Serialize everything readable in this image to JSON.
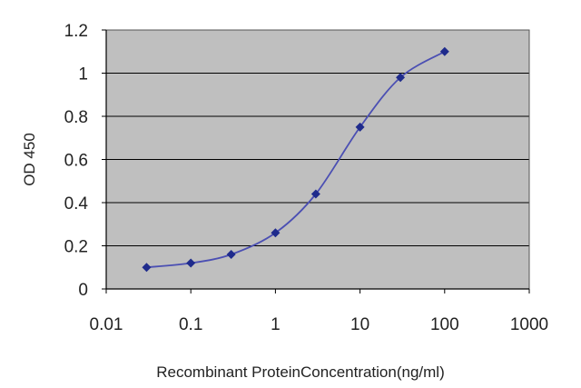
{
  "chart_data": {
    "type": "line",
    "title": "",
    "xlabel": "Recombinant ProteinConcentration(ng/ml)",
    "ylabel": "OD 450",
    "x_scale": "log",
    "xlim": [
      0.01,
      1000
    ],
    "ylim": [
      0,
      1.2
    ],
    "x_ticks": [
      0.01,
      0.1,
      1,
      10,
      100,
      1000
    ],
    "x_tick_labels": [
      "0.01",
      "0.1",
      "1",
      "10",
      "100",
      "1000"
    ],
    "y_ticks": [
      0,
      0.2,
      0.4,
      0.6,
      0.8,
      1,
      1.2
    ],
    "y_tick_labels": [
      "0",
      "0.2",
      "0.4",
      "0.6",
      "0.8",
      "1",
      "1.2"
    ],
    "grid": "horizontal",
    "legend": "none",
    "colors": {
      "plot_background": "#bfbfbf",
      "gridline": "#000000",
      "series": "#4b4fb3",
      "marker": "#1f2b8c"
    },
    "series": [
      {
        "x": [
          0.03,
          0.1,
          0.3,
          1,
          3,
          10,
          30,
          100
        ],
        "y": [
          0.1,
          0.12,
          0.16,
          0.26,
          0.44,
          0.75,
          0.98,
          1.1
        ]
      }
    ]
  }
}
